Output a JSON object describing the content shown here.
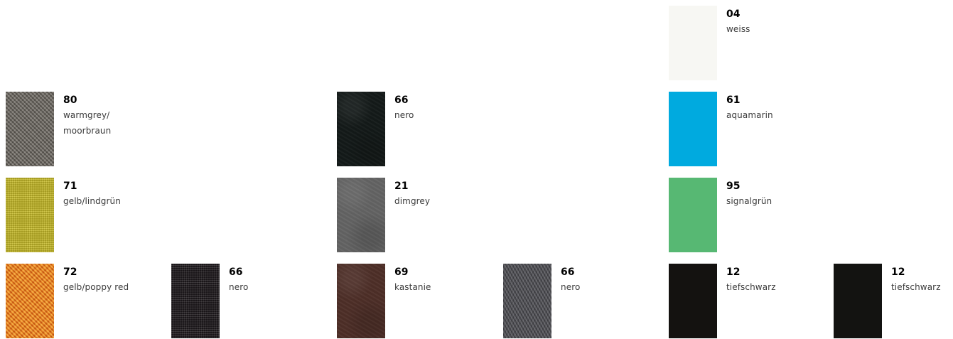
{
  "swatches": [
    {
      "code": "04",
      "lines": [
        "weiss"
      ],
      "color": "#f7f7f3"
    },
    {
      "code": "80",
      "lines": [
        "warmgrey/",
        "moorbraun"
      ],
      "color": "#6d6861"
    },
    {
      "code": "66",
      "lines": [
        "nero"
      ],
      "color": "#141a19"
    },
    {
      "code": "61",
      "lines": [
        "aquamarin"
      ],
      "color": "#00aadf"
    },
    {
      "code": "71",
      "lines": [
        "gelb/lindgrün"
      ],
      "color": "#c9bd2a"
    },
    {
      "code": "21",
      "lines": [
        "dimgrey"
      ],
      "color": "#646464"
    },
    {
      "code": "95",
      "lines": [
        "signalgrün"
      ],
      "color": "#57b873"
    },
    {
      "code": "72",
      "lines": [
        "gelb/poppy red"
      ],
      "color": "#ec7d1c"
    },
    {
      "code": "66",
      "lines": [
        "nero"
      ],
      "color": "#1f1b1e"
    },
    {
      "code": "69",
      "lines": [
        "kastanie"
      ],
      "color": "#4e2f28"
    },
    {
      "code": "66",
      "lines": [
        "nero"
      ],
      "color": "#4d4d52"
    },
    {
      "code": "12",
      "lines": [
        "tiefschwarz"
      ],
      "color": "#141210"
    },
    {
      "code": "12",
      "lines": [
        "tiefschwarz"
      ],
      "color": "#131311"
    }
  ]
}
